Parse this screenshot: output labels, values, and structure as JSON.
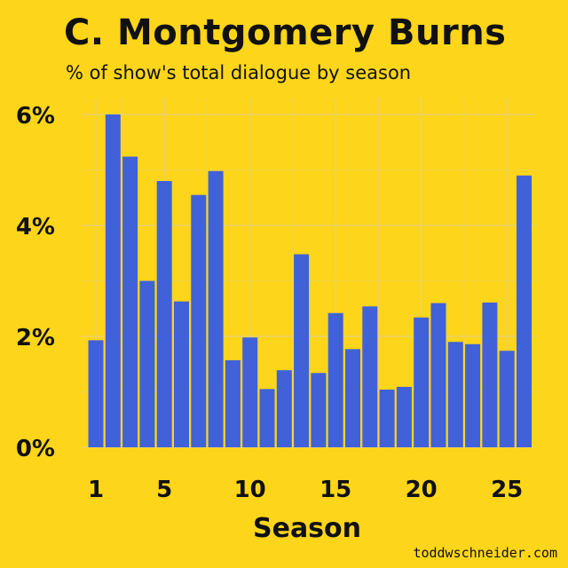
{
  "title": "C. Montgomery Burns",
  "subtitle": "% of show's total dialogue by season",
  "credit": "toddwschneider.com",
  "colors": {
    "background": "#FDD51A",
    "bar": "#4161D8",
    "grid": "#E8D27A"
  },
  "chart_data": {
    "type": "bar",
    "title": "C. Montgomery Burns",
    "subtitle": "% of show's total dialogue by season",
    "xlabel": "Season",
    "ylabel": "",
    "x_ticks": [
      1,
      5,
      10,
      15,
      20,
      25
    ],
    "y_ticks": [
      "0%",
      "2%",
      "4%",
      "6%"
    ],
    "ylim": [
      0,
      6.1
    ],
    "grid": true,
    "categories": [
      1,
      2,
      3,
      4,
      5,
      6,
      7,
      8,
      9,
      10,
      11,
      12,
      13,
      14,
      15,
      16,
      17,
      18,
      19,
      20,
      21,
      22,
      23,
      24,
      25,
      26
    ],
    "values": [
      1.93,
      6.0,
      5.24,
      3.0,
      4.8,
      2.63,
      4.55,
      4.98,
      1.57,
      1.98,
      1.05,
      1.39,
      3.48,
      1.34,
      2.42,
      1.77,
      2.54,
      1.04,
      1.09,
      2.34,
      2.6,
      1.9,
      1.86,
      2.61,
      1.74,
      4.9
    ]
  }
}
